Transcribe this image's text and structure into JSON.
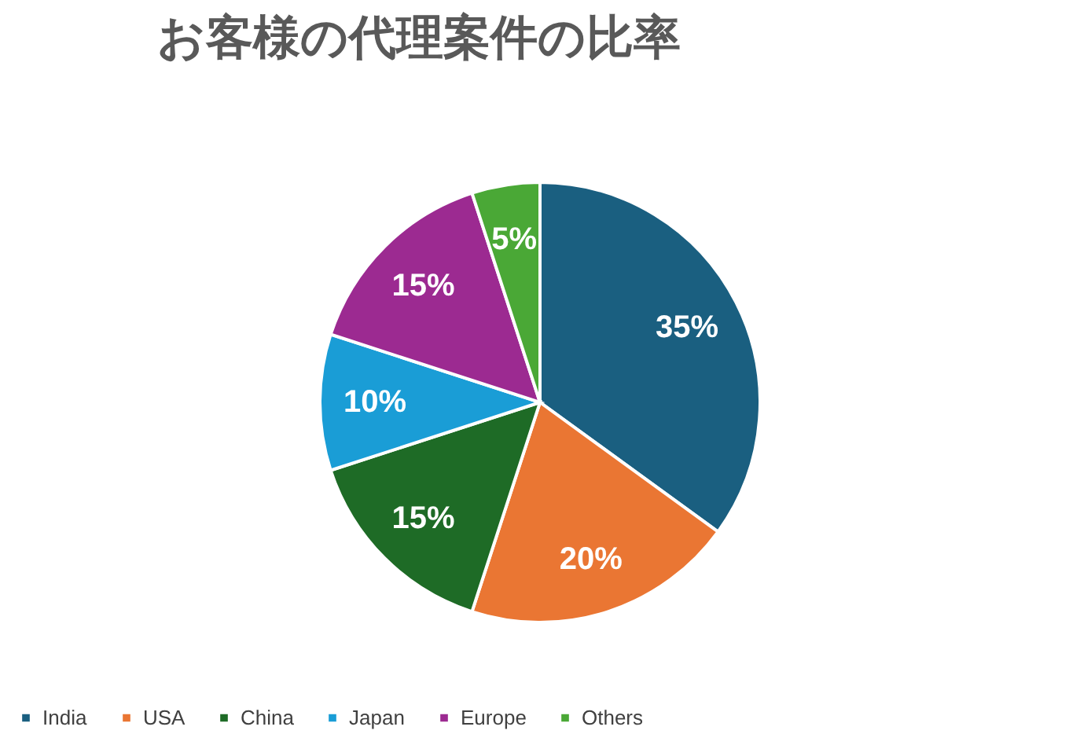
{
  "chart_data": {
    "type": "pie",
    "title": "お客様の代理案件の比率",
    "categories": [
      "India",
      "USA",
      "China",
      "Japan",
      "Europe",
      "Others"
    ],
    "values": [
      35,
      20,
      15,
      10,
      15,
      5
    ],
    "value_labels": [
      "35%",
      "20%",
      "15%",
      "10%",
      "15%",
      "5%"
    ],
    "colors": [
      "#1a5f80",
      "#ea7633",
      "#1e6b26",
      "#1a9dd6",
      "#9c2a91",
      "#4aa836"
    ],
    "legend": "bottom"
  }
}
